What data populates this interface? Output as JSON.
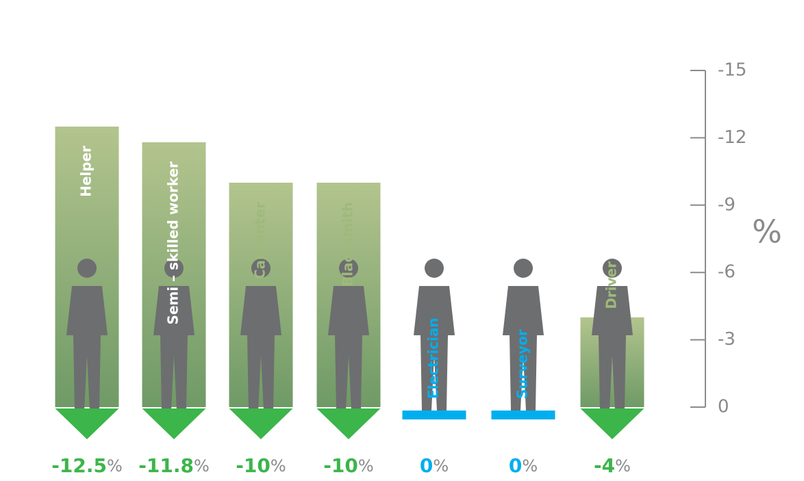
{
  "chart_data": {
    "type": "bar",
    "categories": [
      "Helper",
      "Semi – skilled worker",
      "Carpenter",
      "Blacksmith",
      "Electrician",
      "Surveyor",
      "Driver"
    ],
    "values": [
      -12.5,
      -11.8,
      -10,
      -10,
      0,
      0,
      -4
    ],
    "value_unit": "%",
    "colors": [
      "#3cb54a",
      "#3cb54a",
      "#3cb54a",
      "#3cb54a",
      "#00aeef",
      "#00aeef",
      "#3cb54a"
    ],
    "label_colors": [
      "#ffffff",
      "#ffffff",
      "#9fb97c",
      "#9fb97c",
      "#00aeef",
      "#00aeef",
      "#9fb97c"
    ],
    "y_label": "%",
    "ylim": [
      0,
      -15
    ],
    "yticks": [
      0,
      -3,
      -6,
      -9,
      -12,
      -15
    ]
  }
}
